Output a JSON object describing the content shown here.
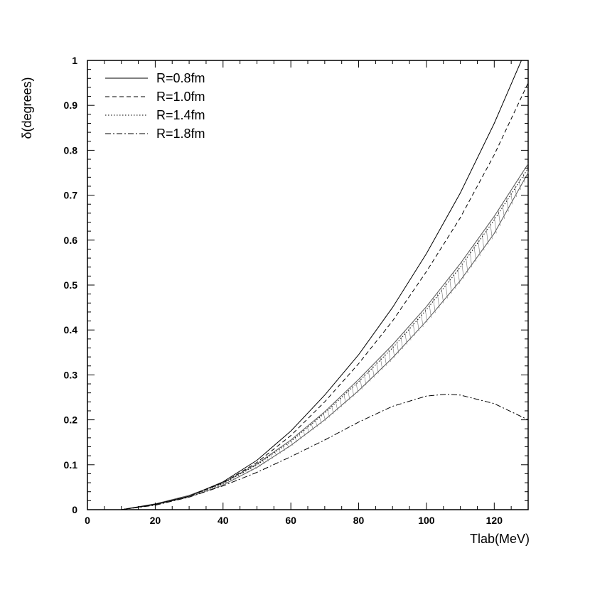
{
  "chart_data": {
    "type": "line",
    "xlabel": "Tlab(MeV)",
    "ylabel": "δ(degrees)",
    "xlim": [
      0,
      130
    ],
    "ylim": [
      0,
      1
    ],
    "xticks": [
      0,
      20,
      40,
      60,
      80,
      100,
      120
    ],
    "yticks": [
      0,
      0.1,
      0.2,
      0.3,
      0.4,
      0.5,
      0.6,
      0.7,
      0.8,
      0.9,
      1
    ],
    "grid": false,
    "legend_position": "top-left",
    "series": [
      {
        "name": "R=0.8fm",
        "style": "solid",
        "x": [
          10,
          20,
          30,
          40,
          50,
          60,
          70,
          80,
          90,
          100,
          110,
          120,
          128
        ],
        "y": [
          0.0,
          0.012,
          0.03,
          0.062,
          0.11,
          0.175,
          0.255,
          0.345,
          0.45,
          0.57,
          0.705,
          0.86,
          1.0
        ]
      },
      {
        "name": "R=1.0fm",
        "style": "dashed",
        "x": [
          10,
          20,
          30,
          40,
          50,
          60,
          70,
          80,
          90,
          100,
          110,
          120,
          130
        ],
        "y": [
          0.0,
          0.012,
          0.03,
          0.06,
          0.105,
          0.165,
          0.24,
          0.325,
          0.42,
          0.53,
          0.65,
          0.79,
          0.95
        ]
      },
      {
        "name": "R=1.4fm",
        "style": "dotted",
        "x": [
          10,
          20,
          30,
          40,
          50,
          60,
          70,
          80,
          90,
          100,
          110,
          120,
          130
        ],
        "y": [
          0.0,
          0.012,
          0.03,
          0.058,
          0.1,
          0.152,
          0.215,
          0.285,
          0.36,
          0.445,
          0.54,
          0.645,
          0.76
        ]
      },
      {
        "name": "R=1.8fm",
        "style": "dashdot",
        "x": [
          10,
          20,
          30,
          40,
          50,
          60,
          70,
          80,
          90,
          100,
          106,
          110,
          120,
          130
        ],
        "y": [
          0.0,
          0.01,
          0.028,
          0.053,
          0.083,
          0.118,
          0.155,
          0.195,
          0.23,
          0.253,
          0.257,
          0.255,
          0.236,
          0.2
        ]
      }
    ],
    "band": {
      "x": [
        10,
        20,
        30,
        40,
        50,
        60,
        70,
        80,
        90,
        100,
        110,
        120,
        130
      ],
      "upper": [
        0.0,
        0.013,
        0.032,
        0.06,
        0.102,
        0.155,
        0.218,
        0.29,
        0.367,
        0.452,
        0.548,
        0.653,
        0.77
      ],
      "lower": [
        0.0,
        0.011,
        0.028,
        0.055,
        0.094,
        0.143,
        0.2,
        0.265,
        0.338,
        0.42,
        0.51,
        0.615,
        0.75
      ]
    }
  }
}
